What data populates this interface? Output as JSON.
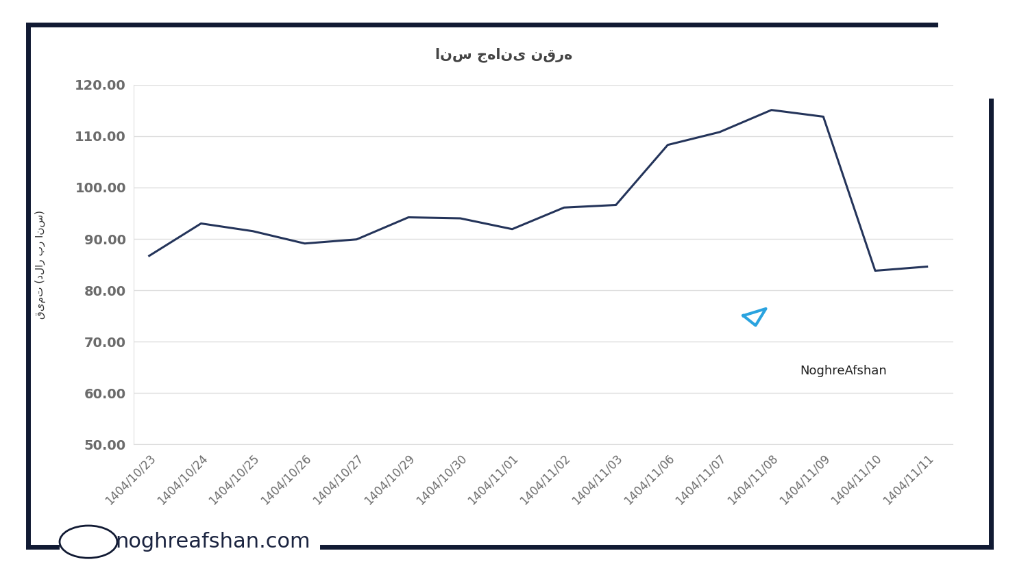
{
  "chart_data": {
    "type": "line",
    "title": "انس جهانی نقره",
    "y_label": "قیمت (دلار بر انس)",
    "categories": [
      "1404/10/23",
      "1404/10/24",
      "1404/10/25",
      "1404/10/26",
      "1404/10/27",
      "1404/10/29",
      "1404/10/30",
      "1404/11/01",
      "1404/11/02",
      "1404/11/03",
      "1404/11/06",
      "1404/11/07",
      "1404/11/08",
      "1404/11/09",
      "1404/11/10",
      "1404/11/11"
    ],
    "values": [
      86.7,
      93.0,
      91.5,
      89.1,
      89.9,
      94.2,
      94.0,
      91.9,
      96.1,
      96.6,
      108.3,
      110.8,
      115.1,
      113.8,
      83.8,
      84.6
    ],
    "color": "#24345a",
    "ylim": [
      50,
      120
    ],
    "yticks": [
      {
        "value": 50,
        "label": "50.00"
      },
      {
        "value": 60,
        "label": "60.00"
      },
      {
        "value": 70,
        "label": "70.00"
      },
      {
        "value": 80,
        "label": "80.00"
      },
      {
        "value": 90,
        "label": "90.00"
      },
      {
        "value": 100,
        "label": "100.00"
      },
      {
        "value": 110,
        "label": "110.00"
      },
      {
        "value": 120,
        "label": "120.00"
      }
    ],
    "grid": true,
    "annotations": [
      "NoghreAfshan",
      "noghreafshan.com"
    ]
  }
}
